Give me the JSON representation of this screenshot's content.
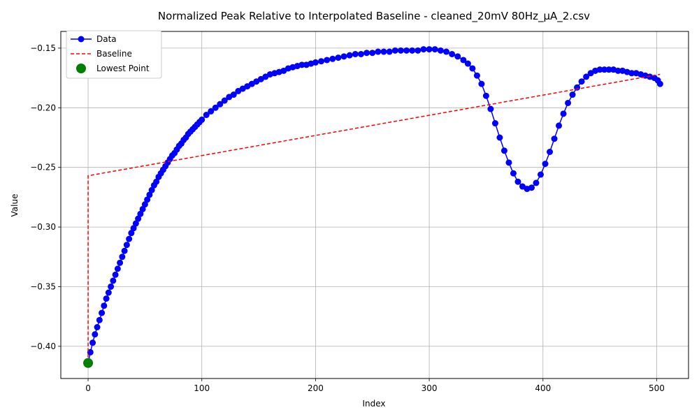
{
  "chart_data": {
    "type": "line",
    "title": "Normalized Peak Relative to Interpolated Baseline - cleaned_20mV 80Hz_µA_2.csv",
    "xlabel": "Index",
    "ylabel": "Value",
    "xlim": [
      -24,
      528
    ],
    "ylim": [
      -0.427,
      -0.136
    ],
    "grid": true,
    "legend_position": "top-left",
    "x_ticks": [
      0,
      100,
      200,
      300,
      400,
      500
    ],
    "x_tick_labels": [
      "0",
      "100",
      "200",
      "300",
      "400",
      "500"
    ],
    "y_ticks": [
      -0.4,
      -0.35,
      -0.3,
      -0.25,
      -0.2,
      -0.15
    ],
    "y_tick_labels": [
      "−0.40",
      "−0.35",
      "−0.30",
      "−0.25",
      "−0.20",
      "−0.15"
    ],
    "colors": {
      "data": "#0000ff",
      "baseline": "#ff0000",
      "lowest": "#008000"
    },
    "series": [
      {
        "name": "Data",
        "style": "line-marker",
        "points": [
          [
            0,
            -0.414
          ],
          [
            2,
            -0.405
          ],
          [
            4,
            -0.397
          ],
          [
            6,
            -0.39
          ],
          [
            8,
            -0.384
          ],
          [
            10,
            -0.378
          ],
          [
            12,
            -0.372
          ],
          [
            14,
            -0.366
          ],
          [
            16,
            -0.36
          ],
          [
            18,
            -0.355
          ],
          [
            20,
            -0.35
          ],
          [
            22,
            -0.345
          ],
          [
            24,
            -0.34
          ],
          [
            26,
            -0.335
          ],
          [
            28,
            -0.33
          ],
          [
            30,
            -0.325
          ],
          [
            32,
            -0.32
          ],
          [
            34,
            -0.315
          ],
          [
            36,
            -0.31
          ],
          [
            38,
            -0.305
          ],
          [
            40,
            -0.301
          ],
          [
            42,
            -0.297
          ],
          [
            44,
            -0.293
          ],
          [
            46,
            -0.289
          ],
          [
            48,
            -0.285
          ],
          [
            50,
            -0.281
          ],
          [
            52,
            -0.277
          ],
          [
            54,
            -0.273
          ],
          [
            56,
            -0.269
          ],
          [
            58,
            -0.265
          ],
          [
            60,
            -0.262
          ],
          [
            62,
            -0.258
          ],
          [
            64,
            -0.255
          ],
          [
            66,
            -0.252
          ],
          [
            68,
            -0.249
          ],
          [
            70,
            -0.246
          ],
          [
            72,
            -0.243
          ],
          [
            74,
            -0.24
          ],
          [
            76,
            -0.238
          ],
          [
            78,
            -0.235
          ],
          [
            80,
            -0.232
          ],
          [
            82,
            -0.23
          ],
          [
            84,
            -0.227
          ],
          [
            86,
            -0.225
          ],
          [
            88,
            -0.222
          ],
          [
            90,
            -0.22
          ],
          [
            92,
            -0.218
          ],
          [
            94,
            -0.216
          ],
          [
            96,
            -0.214
          ],
          [
            98,
            -0.212
          ],
          [
            100,
            -0.21
          ],
          [
            104,
            -0.206
          ],
          [
            108,
            -0.203
          ],
          [
            112,
            -0.2
          ],
          [
            116,
            -0.197
          ],
          [
            120,
            -0.194
          ],
          [
            124,
            -0.191
          ],
          [
            128,
            -0.189
          ],
          [
            132,
            -0.186
          ],
          [
            136,
            -0.184
          ],
          [
            140,
            -0.182
          ],
          [
            144,
            -0.18
          ],
          [
            148,
            -0.178
          ],
          [
            152,
            -0.176
          ],
          [
            156,
            -0.174
          ],
          [
            160,
            -0.172
          ],
          [
            164,
            -0.171
          ],
          [
            168,
            -0.17
          ],
          [
            172,
            -0.169
          ],
          [
            176,
            -0.167
          ],
          [
            180,
            -0.166
          ],
          [
            184,
            -0.165
          ],
          [
            188,
            -0.164
          ],
          [
            192,
            -0.164
          ],
          [
            196,
            -0.163
          ],
          [
            200,
            -0.162
          ],
          [
            205,
            -0.161
          ],
          [
            210,
            -0.16
          ],
          [
            215,
            -0.159
          ],
          [
            220,
            -0.158
          ],
          [
            225,
            -0.157
          ],
          [
            230,
            -0.156
          ],
          [
            235,
            -0.155
          ],
          [
            240,
            -0.155
          ],
          [
            245,
            -0.154
          ],
          [
            250,
            -0.154
          ],
          [
            255,
            -0.153
          ],
          [
            260,
            -0.153
          ],
          [
            265,
            -0.153
          ],
          [
            270,
            -0.152
          ],
          [
            275,
            -0.152
          ],
          [
            280,
            -0.152
          ],
          [
            285,
            -0.152
          ],
          [
            290,
            -0.152
          ],
          [
            295,
            -0.151
          ],
          [
            300,
            -0.151
          ],
          [
            305,
            -0.151
          ],
          [
            310,
            -0.152
          ],
          [
            315,
            -0.153
          ],
          [
            320,
            -0.155
          ],
          [
            325,
            -0.157
          ],
          [
            330,
            -0.16
          ],
          [
            334,
            -0.163
          ],
          [
            338,
            -0.167
          ],
          [
            342,
            -0.173
          ],
          [
            346,
            -0.18
          ],
          [
            350,
            -0.19
          ],
          [
            354,
            -0.201
          ],
          [
            358,
            -0.213
          ],
          [
            362,
            -0.225
          ],
          [
            366,
            -0.236
          ],
          [
            370,
            -0.246
          ],
          [
            374,
            -0.255
          ],
          [
            378,
            -0.262
          ],
          [
            382,
            -0.266
          ],
          [
            386,
            -0.268
          ],
          [
            390,
            -0.267
          ],
          [
            394,
            -0.263
          ],
          [
            398,
            -0.256
          ],
          [
            402,
            -0.247
          ],
          [
            406,
            -0.237
          ],
          [
            410,
            -0.226
          ],
          [
            414,
            -0.215
          ],
          [
            418,
            -0.205
          ],
          [
            422,
            -0.196
          ],
          [
            426,
            -0.189
          ],
          [
            430,
            -0.183
          ],
          [
            434,
            -0.178
          ],
          [
            438,
            -0.174
          ],
          [
            442,
            -0.171
          ],
          [
            446,
            -0.169
          ],
          [
            450,
            -0.168
          ],
          [
            454,
            -0.168
          ],
          [
            458,
            -0.168
          ],
          [
            462,
            -0.168
          ],
          [
            466,
            -0.169
          ],
          [
            470,
            -0.169
          ],
          [
            474,
            -0.17
          ],
          [
            478,
            -0.171
          ],
          [
            482,
            -0.171
          ],
          [
            486,
            -0.172
          ],
          [
            490,
            -0.173
          ],
          [
            494,
            -0.174
          ],
          [
            498,
            -0.175
          ],
          [
            501,
            -0.177
          ],
          [
            503,
            -0.18
          ]
        ]
      },
      {
        "name": "Baseline",
        "style": "dashed",
        "points": [
          [
            0,
            -0.414
          ],
          [
            0,
            -0.257
          ],
          [
            503,
            -0.172
          ]
        ]
      },
      {
        "name": "Lowest Point",
        "style": "scatter",
        "points": [
          [
            0,
            -0.414
          ]
        ]
      }
    ]
  }
}
